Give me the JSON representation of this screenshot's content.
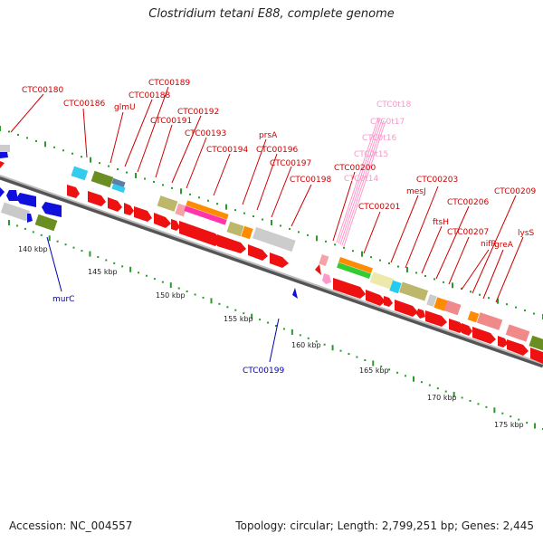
{
  "title": "Clostridium tetani E88, complete genome",
  "footer": {
    "accession": "Accession: NC_004557",
    "topology": "Topology: circular; Length: 2,799,251 bp; Genes: 2,445"
  },
  "colors": {
    "forward_gene": "#ee1111",
    "reverse_gene": "#1010dd",
    "rna": "#ff99cc",
    "backbone": "#8a8a8a",
    "tick": "#2a9a2a",
    "label_fwd": "#cc0000",
    "label_rev": "#0000aa",
    "label_rna": "#f598c8"
  },
  "ticks": [
    "140 kbp",
    "145 kbp",
    "150 kbp",
    "155 kbp",
    "160 kbp",
    "165 kbp",
    "170 kbp",
    "175 kbp"
  ],
  "labels_top": [
    "CTC00180",
    "CTC00186",
    "glmU",
    "CTC00188",
    "CTC00189",
    "CTC00191",
    "CTC00192",
    "CTC00193",
    "CTC00194",
    "prsA",
    "CTC00196",
    "CTC00197",
    "CTC00198",
    "CTC00200",
    "CTC00201",
    "mesJ",
    "CTC00203",
    "ftsH",
    "CTC00206",
    "CTC00207",
    "nifR",
    "CTC00209",
    "greA",
    "lysS"
  ],
  "labels_rna": [
    "CTC0t18",
    "CTC0t17",
    "CTC0t16",
    "CTC0t15",
    "CTC0t14"
  ],
  "labels_bottom": [
    "murC",
    "CTC00199"
  ]
}
